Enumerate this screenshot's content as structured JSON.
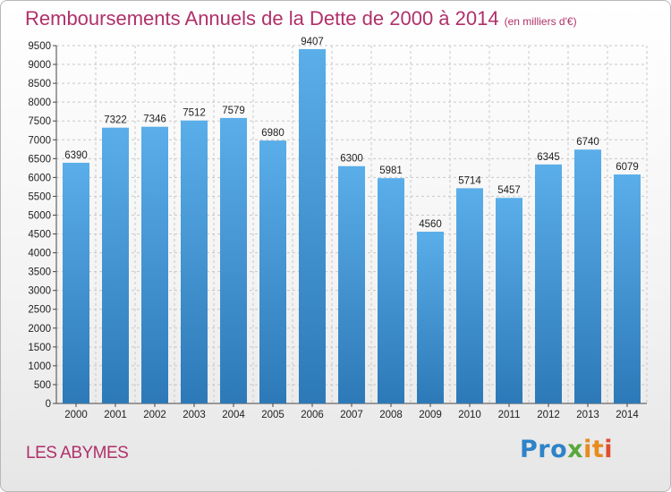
{
  "header": {
    "title": "Remboursements Annuels de la Dette de 2000 à 2014",
    "subtitle": "(en milliers d'€)"
  },
  "footer": {
    "town": "LES ABYMES",
    "logo": {
      "p1": "Pro",
      "p2": "x",
      "p3": "it",
      "p4": "i"
    }
  },
  "colors": {
    "bar": "#4a9ee0",
    "title": "#b0306a"
  },
  "chart_data": {
    "type": "bar",
    "title": "Remboursements Annuels de la Dette de 2000 à 2014",
    "subtitle": "(en milliers d'€)",
    "categories": [
      "2000",
      "2001",
      "2002",
      "2003",
      "2004",
      "2005",
      "2006",
      "2007",
      "2008",
      "2009",
      "2010",
      "2011",
      "2012",
      "2013",
      "2014"
    ],
    "values": [
      6390,
      7322,
      7346,
      7512,
      7579,
      6980,
      9407,
      6300,
      5981,
      4560,
      5714,
      5457,
      6345,
      6740,
      6079
    ],
    "ylim": [
      0,
      9500
    ],
    "yticks": [
      0,
      500,
      1000,
      1500,
      2000,
      2500,
      3000,
      3500,
      4000,
      4500,
      5000,
      5500,
      6000,
      6500,
      7000,
      7500,
      8000,
      8500,
      9000,
      9500
    ],
    "grid": true,
    "data_labels": true
  }
}
